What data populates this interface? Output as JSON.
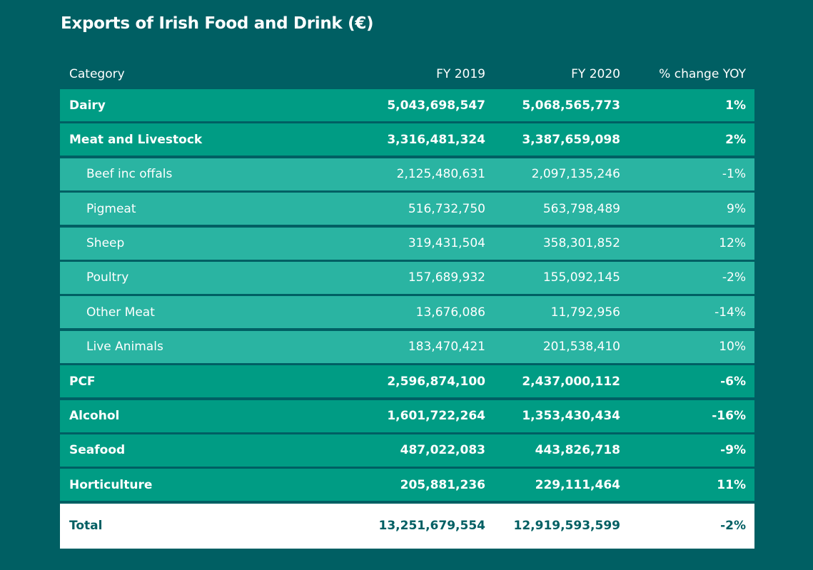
{
  "title": "Exports of Irish Food and Drink (€)",
  "table": {
    "headers": [
      "Category",
      "FY 2019",
      "FY 2020",
      "% change YOY"
    ],
    "rows": [
      {
        "type": "main",
        "category": "Dairy",
        "fy2019": "5,043,698,547",
        "fy2020": "5,068,565,773",
        "change": "1%"
      },
      {
        "type": "main",
        "category": "Meat and Livestock",
        "fy2019": "3,316,481,324",
        "fy2020": "3,387,659,098",
        "change": "2%"
      },
      {
        "type": "sub",
        "category": "Beef inc offals",
        "fy2019": "2,125,480,631",
        "fy2020": "2,097,135,246",
        "change": "-1%"
      },
      {
        "type": "sub",
        "category": "Pigmeat",
        "fy2019": "516,732,750",
        "fy2020": "563,798,489",
        "change": "9%"
      },
      {
        "type": "sub",
        "category": "Sheep",
        "fy2019": "319,431,504",
        "fy2020": "358,301,852",
        "change": "12%"
      },
      {
        "type": "sub",
        "category": "Poultry",
        "fy2019": "157,689,932",
        "fy2020": "155,092,145",
        "change": "-2%"
      },
      {
        "type": "sub",
        "category": "Other Meat",
        "fy2019": "13,676,086",
        "fy2020": "11,792,956",
        "change": "-14%"
      },
      {
        "type": "sub",
        "category": "Live Animals",
        "fy2019": "183,470,421",
        "fy2020": "201,538,410",
        "change": "10%"
      },
      {
        "type": "main",
        "category": "PCF",
        "fy2019": "2,596,874,100",
        "fy2020": "2,437,000,112",
        "change": "-6%"
      },
      {
        "type": "main",
        "category": "Alcohol",
        "fy2019": "1,601,722,264",
        "fy2020": "1,353,430,434",
        "change": "-16%"
      },
      {
        "type": "main",
        "category": "Seafood",
        "fy2019": "487,022,083",
        "fy2020": "443,826,718",
        "change": "-9%"
      },
      {
        "type": "main",
        "category": "Horticulture",
        "fy2019": "205,881,236",
        "fy2020": "229,111,464",
        "change": "11%"
      }
    ],
    "total": {
      "category": "Total",
      "fy2019": "13,251,679,554",
      "fy2020": "12,919,593,599",
      "change": "-2%"
    }
  },
  "colors": {
    "background": "#005f63",
    "main_row": "#009c84",
    "sub_row": "#2ab4a2",
    "total_row": "#ffffff"
  }
}
